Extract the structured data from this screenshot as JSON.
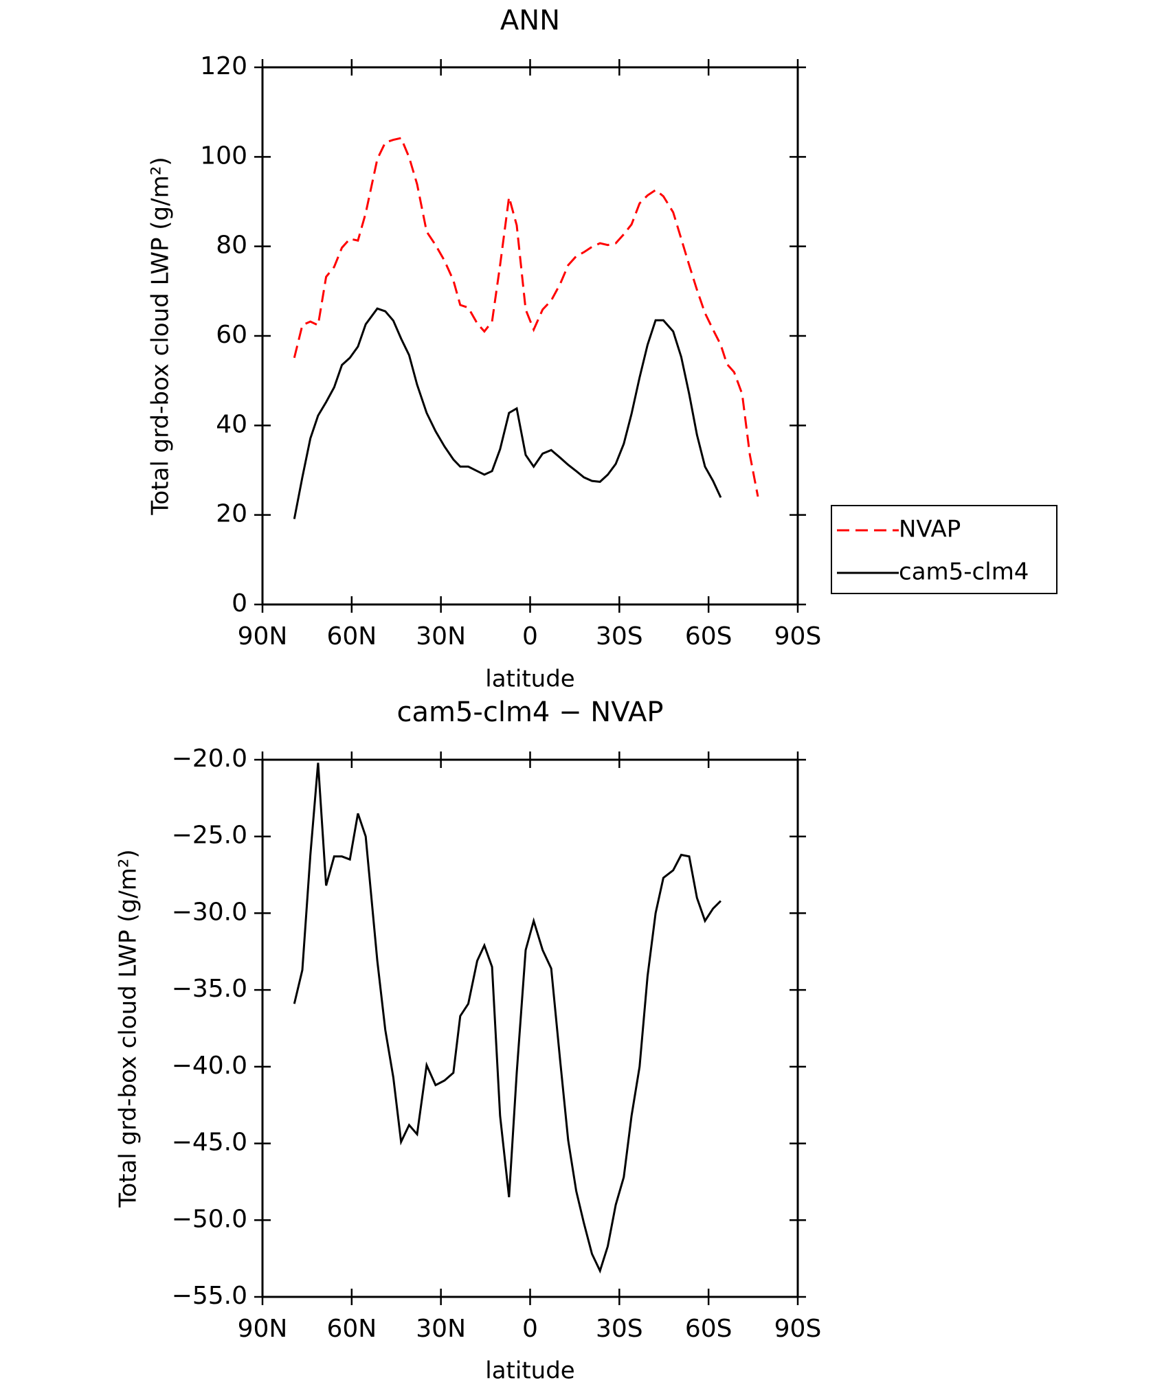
{
  "chart_data": [
    {
      "type": "line",
      "title": "ANN",
      "x_label": "latitude",
      "y_label": "Total grd-box cloud LWP (g/m²)",
      "x": [
        79.3,
        76.6,
        73.9,
        71.3,
        68.6,
        65.9,
        63.3,
        60.6,
        57.9,
        55.3,
        51.4,
        48.7,
        46.0,
        43.4,
        40.7,
        38.0,
        34.8,
        31.8,
        28.8,
        25.8,
        23.5,
        20.8,
        17.8,
        15.4,
        12.8,
        10.1,
        7.1,
        4.5,
        1.5,
        -1.2,
        -4.2,
        -7.1,
        -10.1,
        -12.8,
        -15.5,
        -18.1,
        -20.8,
        -23.5,
        -26.1,
        -28.8,
        -31.5,
        -34.1,
        -36.8,
        -39.5,
        -42.2,
        -44.8,
        -48.1,
        -50.8,
        -53.5,
        -56.1,
        -58.8,
        -61.5,
        -64.1,
        -66.2,
        -68.6,
        -71.3,
        -73.9,
        -76.6
      ],
      "series": [
        {
          "name": "NVAP",
          "color": "#ff0000",
          "dash": "dashed",
          "values": [
            55.1,
            62.4,
            63.2,
            62.4,
            73.2,
            75.4,
            79.7,
            81.7,
            81.3,
            87.4,
            99.5,
            103.2,
            103.8,
            104.2,
            99.9,
            93.9,
            83.3,
            80.3,
            76.8,
            72.4,
            66.9,
            66.3,
            62.8,
            61.0,
            63.2,
            75.8,
            91.0,
            84.7,
            65.9,
            61.4,
            65.9,
            67.9,
            71.6,
            75.8,
            77.8,
            78.7,
            79.9,
            80.7,
            80.3,
            80.7,
            82.7,
            84.9,
            89.6,
            91.4,
            92.6,
            91.2,
            87.6,
            81.7,
            75.8,
            70.3,
            65.1,
            61.4,
            58.0,
            53.7,
            51.9,
            47.0,
            33.4,
            24.1
          ]
        },
        {
          "name": "cam5-clm4",
          "color": "#000000",
          "dash": "solid",
          "values": [
            19.1,
            28.4,
            37.1,
            42.2,
            45.2,
            48.5,
            53.5,
            55.1,
            57.6,
            62.6,
            66.1,
            65.5,
            63.4,
            59.4,
            55.7,
            49.1,
            42.8,
            38.7,
            35.3,
            32.4,
            30.8,
            30.8,
            29.8,
            29.0,
            29.8,
            34.7,
            42.8,
            43.8,
            33.4,
            30.8,
            33.7,
            34.5,
            32.8,
            31.2,
            29.8,
            28.4,
            27.6,
            27.4,
            29.0,
            31.4,
            35.9,
            42.6,
            50.7,
            58.0,
            63.5,
            63.5,
            61.0,
            55.3,
            47.0,
            37.9,
            30.8,
            27.6,
            23.9,
            null,
            null,
            null,
            null,
            null
          ]
        }
      ],
      "xlim": [
        90,
        -90
      ],
      "xticks": [
        {
          "value": 90,
          "label": "90N"
        },
        {
          "value": 60,
          "label": "60N"
        },
        {
          "value": 30,
          "label": "30N"
        },
        0,
        {
          "value": -30,
          "label": "30S"
        },
        {
          "value": -60,
          "label": "60S"
        },
        {
          "value": -90,
          "label": "90S"
        }
      ],
      "ylim": [
        0,
        120
      ],
      "yticks": [
        0,
        20,
        40,
        60,
        80,
        100,
        120
      ],
      "legend": "right"
    },
    {
      "type": "line",
      "title": "cam5-clm4 − NVAP",
      "x_label": "latitude",
      "y_label": "Total grd-box cloud LWP (g/m²)",
      "x": [
        79.3,
        76.6,
        73.9,
        71.3,
        68.6,
        65.9,
        63.3,
        60.6,
        57.9,
        55.3,
        51.4,
        48.7,
        46.0,
        43.4,
        40.7,
        38.0,
        34.8,
        31.8,
        28.8,
        25.8,
        23.5,
        20.8,
        17.8,
        15.4,
        12.8,
        10.1,
        7.1,
        4.5,
        1.5,
        -1.2,
        -4.2,
        -7.1,
        -10.1,
        -12.8,
        -15.5,
        -18.1,
        -20.8,
        -23.5,
        -26.1,
        -28.8,
        -31.5,
        -34.1,
        -36.8,
        -39.5,
        -42.2,
        -44.8,
        -48.1,
        -50.8,
        -53.5,
        -56.1,
        -58.8,
        -61.5,
        -64.1
      ],
      "series": [
        {
          "color": "#000000",
          "dash": "solid",
          "values": [
            -35.9,
            -33.7,
            -26.2,
            -20.2,
            -28.2,
            -26.3,
            -26.3,
            -26.5,
            -23.5,
            -25.0,
            -33.1,
            -37.6,
            -40.7,
            -44.9,
            -43.8,
            -44.4,
            -39.9,
            -41.2,
            -40.9,
            -40.4,
            -36.7,
            -35.9,
            -33.1,
            -32.1,
            -33.5,
            -43.2,
            -48.5,
            -40.4,
            -32.4,
            -30.5,
            -32.4,
            -33.6,
            -39.6,
            -44.8,
            -48.1,
            -50.2,
            -52.2,
            -53.3,
            -51.7,
            -49.0,
            -47.2,
            -43.2,
            -40.0,
            -34.1,
            -30.0,
            -27.7,
            -27.2,
            -26.2,
            -26.3,
            -29.0,
            -30.5,
            -29.7,
            -29.2
          ]
        }
      ],
      "xlim": [
        90,
        -90
      ],
      "xticks": [
        {
          "value": 90,
          "label": "90N"
        },
        {
          "value": 60,
          "label": "60N"
        },
        {
          "value": 30,
          "label": "30N"
        },
        0,
        {
          "value": -30,
          "label": "30S"
        },
        {
          "value": -60,
          "label": "60S"
        },
        {
          "value": -90,
          "label": "90S"
        }
      ],
      "ylim": [
        -55,
        -20
      ],
      "yticks": [
        {
          "value": -55,
          "label": "−55.0"
        },
        {
          "value": -50,
          "label": "−50.0"
        },
        {
          "value": -45,
          "label": "−45.0"
        },
        {
          "value": -40,
          "label": "−40.0"
        },
        {
          "value": -35,
          "label": "−35.0"
        },
        {
          "value": -30,
          "label": "−30.0"
        },
        {
          "value": -25,
          "label": "−25.0"
        },
        {
          "value": -20,
          "label": "−20.0"
        }
      ]
    }
  ]
}
